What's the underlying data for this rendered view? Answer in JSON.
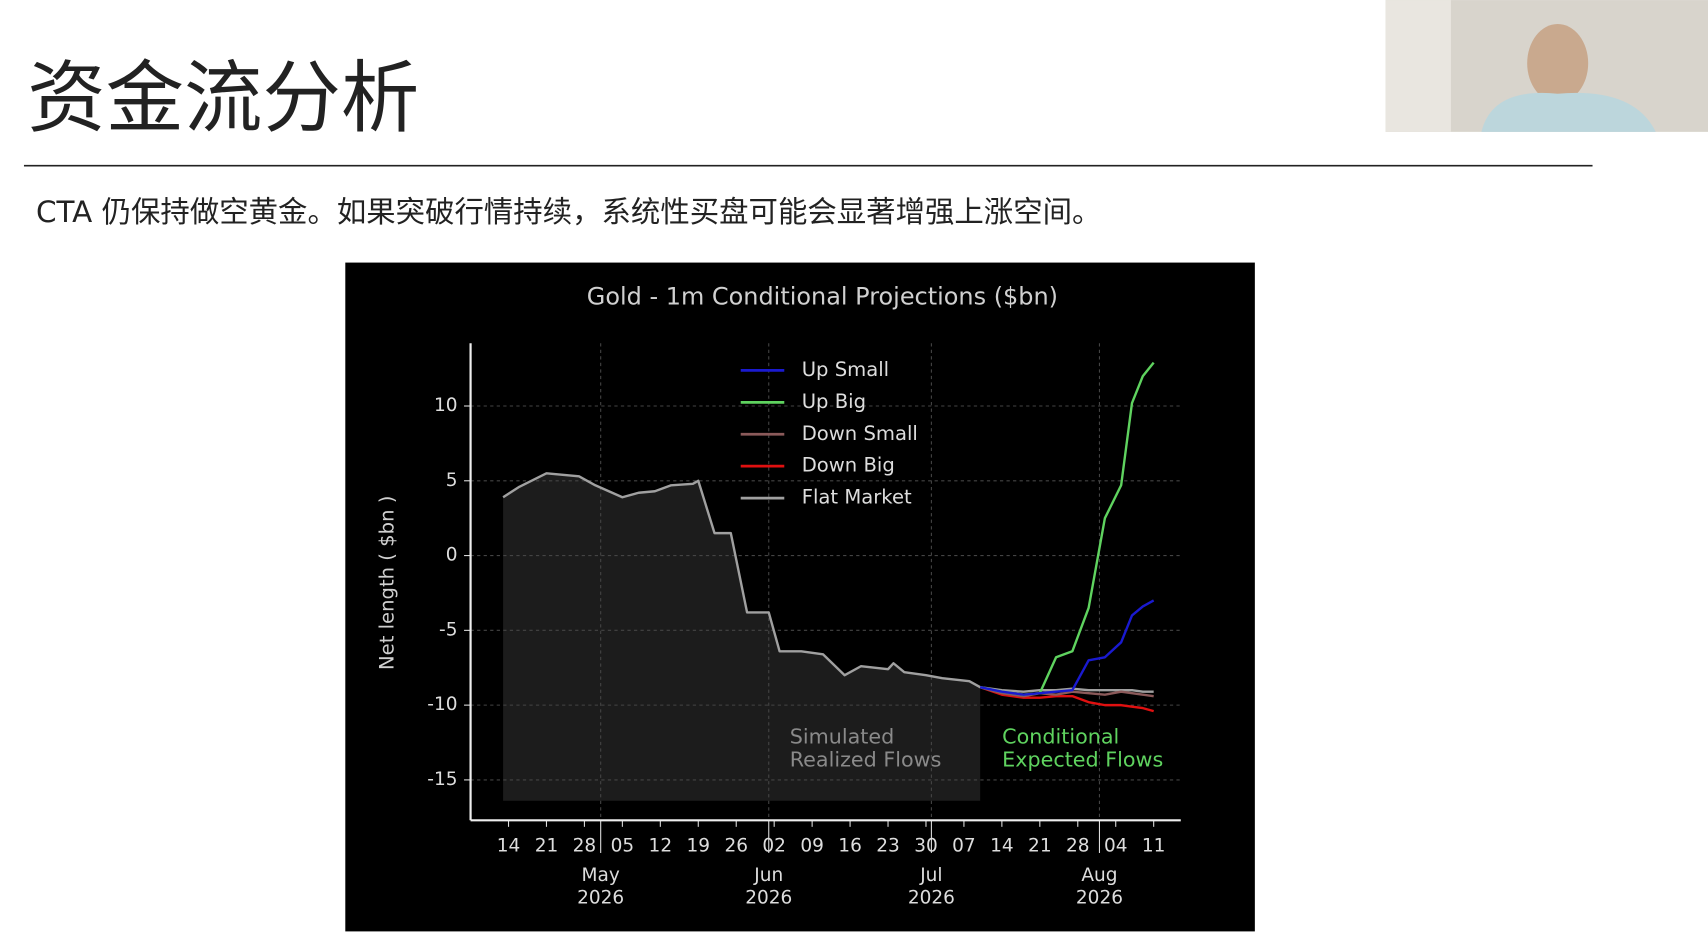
{
  "slide": {
    "title": "资金流分析",
    "subtitle": "CTA 仍保持做空黄金。如果突破行情持续，系统性买盘可能会显著增强上涨空间。"
  },
  "chart_data": {
    "type": "line",
    "title": "Gold - 1m Conditional Projections ($bn)",
    "y_label": "Net length ( $bn )",
    "x": [
      "2026-04-13",
      "2026-04-16",
      "2026-04-21",
      "2026-04-27",
      "2026-04-30",
      "2026-05-05",
      "2026-05-08",
      "2026-05-11",
      "2026-05-14",
      "2026-05-18",
      "2026-05-19",
      "2026-05-22",
      "2026-05-25",
      "2026-05-28",
      "2026-06-01",
      "2026-06-03",
      "2026-06-07",
      "2026-06-11",
      "2026-06-15",
      "2026-06-18",
      "2026-06-23",
      "2026-06-24",
      "2026-06-26",
      "2026-06-30",
      "2026-07-03",
      "2026-07-08",
      "2026-07-10",
      "2026-07-14",
      "2026-07-18",
      "2026-07-21",
      "2026-07-24",
      "2026-07-27",
      "2026-07-30",
      "2026-08-02",
      "2026-08-05",
      "2026-08-07",
      "2026-08-09",
      "2026-08-11"
    ],
    "series": [
      {
        "name": "Up Small",
        "color": "#1a1ad0",
        "values": [
          null,
          null,
          null,
          null,
          null,
          null,
          null,
          null,
          null,
          null,
          null,
          null,
          null,
          null,
          null,
          null,
          null,
          null,
          null,
          null,
          null,
          null,
          null,
          null,
          null,
          null,
          -8.8,
          -9.1,
          -9.3,
          -9.2,
          -9.1,
          -9.0,
          -7.0,
          -6.8,
          -5.8,
          -4.0,
          -3.4,
          -3.0
        ]
      },
      {
        "name": "Up Big",
        "color": "#5fd35f",
        "values": [
          null,
          null,
          null,
          null,
          null,
          null,
          null,
          null,
          null,
          null,
          null,
          null,
          null,
          null,
          null,
          null,
          null,
          null,
          null,
          null,
          null,
          null,
          null,
          null,
          null,
          null,
          -8.8,
          -9.1,
          -9.3,
          -9.2,
          -6.8,
          -6.4,
          -3.5,
          2.5,
          4.7,
          10.2,
          12.0,
          12.9
        ]
      },
      {
        "name": "Down Small",
        "color": "#8b5a5a",
        "values": [
          null,
          null,
          null,
          null,
          null,
          null,
          null,
          null,
          null,
          null,
          null,
          null,
          null,
          null,
          null,
          null,
          null,
          null,
          null,
          null,
          null,
          null,
          null,
          null,
          null,
          null,
          -8.8,
          -9.2,
          -9.4,
          -9.2,
          -9.3,
          -9.1,
          -9.2,
          -9.3,
          -9.1,
          -9.2,
          -9.3,
          -9.4
        ]
      },
      {
        "name": "Down Big",
        "color": "#e01010",
        "values": [
          null,
          null,
          null,
          null,
          null,
          null,
          null,
          null,
          null,
          null,
          null,
          null,
          null,
          null,
          null,
          null,
          null,
          null,
          null,
          null,
          null,
          null,
          null,
          null,
          null,
          null,
          -8.8,
          -9.3,
          -9.5,
          -9.5,
          -9.4,
          -9.4,
          -9.8,
          -10.0,
          -10.0,
          -10.1,
          -10.2,
          -10.4
        ]
      },
      {
        "name": "Flat Market",
        "color": "#a0a0a0",
        "values": [
          3.9,
          4.6,
          5.5,
          5.3,
          4.7,
          3.9,
          4.2,
          4.3,
          4.7,
          4.8,
          5.0,
          1.5,
          1.5,
          -3.8,
          -3.8,
          -6.4,
          -6.4,
          -6.6,
          -8.0,
          -7.4,
          -7.6,
          -7.2,
          -7.8,
          -8.0,
          -8.2,
          -8.4,
          -8.8,
          -9.0,
          -9.1,
          -9.0,
          -9.0,
          -8.9,
          -9.0,
          -9.0,
          -9.0,
          -9.0,
          -9.1,
          -9.1
        ]
      }
    ],
    "xlim": [
      "2026-04-07",
      "2026-08-16"
    ],
    "xticks": [
      {
        "value": "2026-04-14",
        "label": "14"
      },
      {
        "value": "2026-04-21",
        "label": "21"
      },
      {
        "value": "2026-04-28",
        "label": "28"
      },
      {
        "value": "2026-05-05",
        "label": "05"
      },
      {
        "value": "2026-05-12",
        "label": "12"
      },
      {
        "value": "2026-05-19",
        "label": "19"
      },
      {
        "value": "2026-05-26",
        "label": "26"
      },
      {
        "value": "2026-06-02",
        "label": "02"
      },
      {
        "value": "2026-06-09",
        "label": "09"
      },
      {
        "value": "2026-06-16",
        "label": "16"
      },
      {
        "value": "2026-06-23",
        "label": "23"
      },
      {
        "value": "2026-06-30",
        "label": "30"
      },
      {
        "value": "2026-07-07",
        "label": "07"
      },
      {
        "value": "2026-07-14",
        "label": "14"
      },
      {
        "value": "2026-07-21",
        "label": "21"
      },
      {
        "value": "2026-07-28",
        "label": "28"
      },
      {
        "value": "2026-08-04",
        "label": "04"
      },
      {
        "value": "2026-08-11",
        "label": "11"
      }
    ],
    "month_ticks": [
      {
        "value": "2026-05-01",
        "month": "May",
        "year": "2026"
      },
      {
        "value": "2026-06-01",
        "month": "Jun",
        "year": "2026"
      },
      {
        "value": "2026-07-01",
        "month": "Jul",
        "year": "2026"
      },
      {
        "value": "2026-08-01",
        "month": "Aug",
        "year": "2026"
      }
    ],
    "ylim": [
      -17.7,
      14.2
    ],
    "yticks": [
      -15,
      -10,
      -5,
      0,
      5,
      10
    ],
    "grid": true,
    "legend": "top",
    "annotations": [
      {
        "lines": [
          "Simulated",
          "Realized Flows"
        ],
        "color": "#8a8a8a"
      },
      {
        "lines": [
          "Conditional",
          "Expected Flows"
        ],
        "color": "#5fd35f"
      }
    ]
  }
}
